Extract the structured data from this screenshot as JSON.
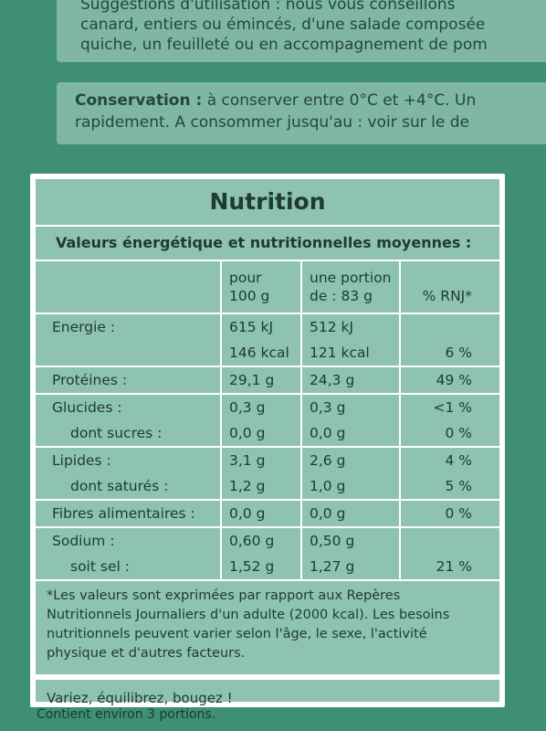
{
  "header": {
    "lines": [
      "Suggestions d'utilisation : nous vous conseillons",
      "canard, entiers ou émincés, d'une salade composée",
      "quiche, un feuilleté ou en accompagnement de pom"
    ]
  },
  "conservation": {
    "label": "Conservation :",
    "text1": " à conserver entre 0°C et +4°C. Un",
    "text2": "rapidement. A consommer jusqu'au : voir sur le de"
  },
  "nutrition": {
    "title": "Nutrition",
    "subtitle": "Valeurs énergétique et nutritionnelles moyennes :",
    "col_headers": {
      "per100_1": "pour",
      "per100_2": "100 g",
      "portion_1": "une portion",
      "portion_2": "de : 83 g",
      "rnj": "% RNJ*"
    },
    "rows": [
      {
        "label": "Energie :",
        "p100": "615 kJ",
        "portion": "512 kJ",
        "rnj": "",
        "indent": false,
        "group_start": true
      },
      {
        "label": "",
        "p100": "146 kcal",
        "portion": "121 kcal",
        "rnj": "6 %",
        "indent": false,
        "group_start": false
      },
      {
        "label": "Protéines :",
        "p100": "29,1 g",
        "portion": "24,3 g",
        "rnj": "49 %",
        "indent": false,
        "group_start": true
      },
      {
        "label": "Glucides :",
        "p100": "0,3 g",
        "portion": "0,3 g",
        "rnj": "<1 %",
        "indent": false,
        "group_start": true
      },
      {
        "label": "dont sucres :",
        "p100": "0,0 g",
        "portion": "0,0 g",
        "rnj": "0 %",
        "indent": true,
        "group_start": false
      },
      {
        "label": "Lipides :",
        "p100": "3,1 g",
        "portion": "2,6 g",
        "rnj": "4 %",
        "indent": false,
        "group_start": true
      },
      {
        "label": "dont saturés :",
        "p100": "1,2 g",
        "portion": "1,0 g",
        "rnj": "5 %",
        "indent": true,
        "group_start": false
      },
      {
        "label": "Fibres alimentaires :",
        "p100": "0,0 g",
        "portion": "0,0 g",
        "rnj": "0 %",
        "indent": false,
        "group_start": true
      },
      {
        "label": "Sodium :",
        "p100": "0,60 g",
        "portion": "0,50 g",
        "rnj": "",
        "indent": false,
        "group_start": true
      },
      {
        "label": "soit sel :",
        "p100": "1,52 g",
        "portion": "1,27 g",
        "rnj": "21 %",
        "indent": true,
        "group_start": false
      }
    ],
    "footnote": "*Les valeurs sont exprimées par rapport aux Repères Nutritionnels Journaliers d'un adulte (2000 kcal). Les besoins nutritionnels peuvent varier selon l'âge, le sexe, l'activité physique et d'autres facteurs.",
    "motto": "Variez, équilibrez, bougez !"
  },
  "portions": "Contient environ 3 portions."
}
